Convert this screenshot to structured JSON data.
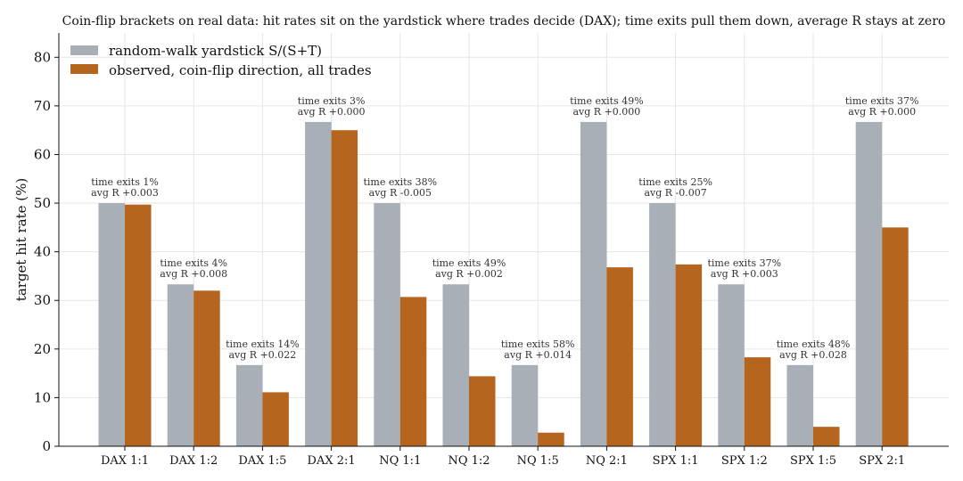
{
  "chart_data": {
    "type": "bar",
    "title": "Coin-flip brackets on real data: hit rates sit on the yardstick where trades decide (DAX); time exits pull them down, average R stays at zero",
    "xlabel": "",
    "ylabel": "target hit rate (%)",
    "ylim": [
      0,
      85
    ],
    "yticks": [
      0,
      10,
      20,
      30,
      40,
      50,
      60,
      70,
      80
    ],
    "grid": true,
    "legend_position": "top-left",
    "categories": [
      "DAX 1:1",
      "DAX 1:2",
      "DAX 1:5",
      "DAX 2:1",
      "NQ 1:1",
      "NQ 1:2",
      "NQ 1:5",
      "NQ 2:1",
      "SPX 1:1",
      "SPX 1:2",
      "SPX 1:5",
      "SPX 2:1"
    ],
    "series": [
      {
        "name": "random-walk yardstick S/(S+T)",
        "color": "#a9afb7",
        "values": [
          50.0,
          33.3,
          16.7,
          66.7,
          50.0,
          33.3,
          16.7,
          66.7,
          50.0,
          33.3,
          16.7,
          66.7
        ]
      },
      {
        "name": "observed, coin-flip direction, all trades",
        "color": "#b5651d",
        "values": [
          49.7,
          32.0,
          11.1,
          65.0,
          30.7,
          14.4,
          2.8,
          36.8,
          37.4,
          18.3,
          4.0,
          45.0
        ]
      }
    ],
    "annotations": [
      {
        "line1": "time exits 1%",
        "line2": "avg R +0.003"
      },
      {
        "line1": "time exits 4%",
        "line2": "avg R +0.008"
      },
      {
        "line1": "time exits 14%",
        "line2": "avg R +0.022"
      },
      {
        "line1": "time exits 3%",
        "line2": "avg R +0.000"
      },
      {
        "line1": "time exits 38%",
        "line2": "avg R -0.005"
      },
      {
        "line1": "time exits 49%",
        "line2": "avg R +0.002"
      },
      {
        "line1": "time exits 58%",
        "line2": "avg R +0.014"
      },
      {
        "line1": "time exits 49%",
        "line2": "avg R +0.000"
      },
      {
        "line1": "time exits 25%",
        "line2": "avg R -0.007"
      },
      {
        "line1": "time exits 37%",
        "line2": "avg R +0.003"
      },
      {
        "line1": "time exits 48%",
        "line2": "avg R +0.028"
      },
      {
        "line1": "time exits 37%",
        "line2": "avg R +0.000"
      }
    ]
  }
}
